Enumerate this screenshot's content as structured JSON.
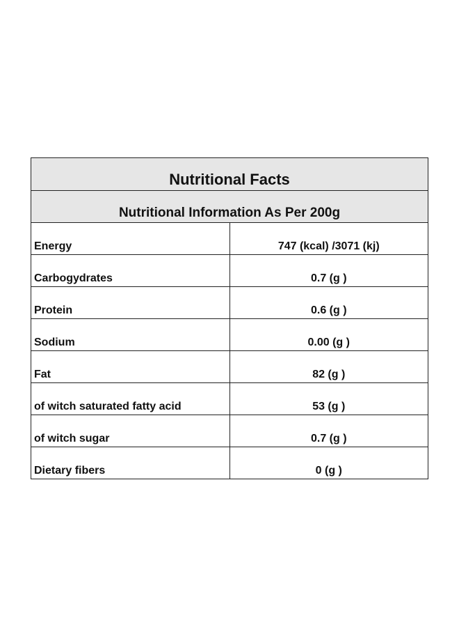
{
  "table": {
    "title": "Nutritional Facts",
    "subtitle": "Nutritional Information As Per 200g",
    "rows": [
      {
        "name": "Energy",
        "value": "747 (kcal) /3071 (kj)"
      },
      {
        "name": "Carbogydrates",
        "value": "0.7 (g )"
      },
      {
        "name": "Protein",
        "value": "0.6 (g )"
      },
      {
        "name": "Sodium",
        "value": "0.00 (g )"
      },
      {
        "name": "Fat",
        "value": "82 (g )"
      },
      {
        "name": "of witch saturated fatty acid",
        "value": "53 (g )"
      },
      {
        "name": "of witch sugar",
        "value": "0.7 (g )"
      },
      {
        "name": "Dietary fibers",
        "value": "0 (g )"
      }
    ]
  },
  "colors": {
    "header_background": "#e6e6e6",
    "border": "#222222",
    "text": "#111111"
  }
}
